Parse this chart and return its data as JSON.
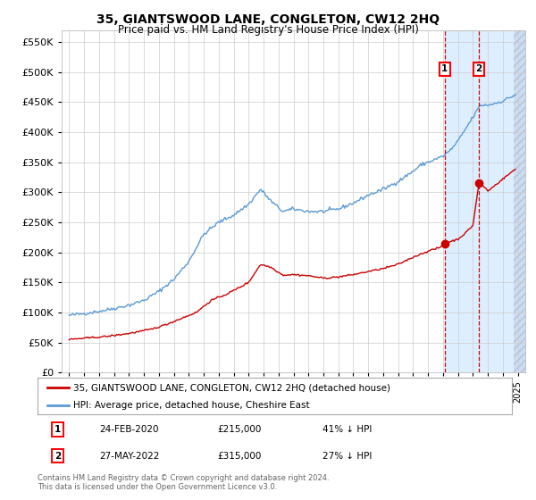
{
  "title": "35, GIANTSWOOD LANE, CONGLETON, CW12 2HQ",
  "subtitle": "Price paid vs. HM Land Registry's House Price Index (HPI)",
  "legend_line1": "35, GIANTSWOOD LANE, CONGLETON, CW12 2HQ (detached house)",
  "legend_line2": "HPI: Average price, detached house, Cheshire East",
  "footnote1": "Contains HM Land Registry data © Crown copyright and database right 2024.",
  "footnote2": "This data is licensed under the Open Government Licence v3.0.",
  "transaction1_date": "24-FEB-2020",
  "transaction1_price": "£215,000",
  "transaction1_hpi": "41% ↓ HPI",
  "transaction2_date": "27-MAY-2022",
  "transaction2_price": "£315,000",
  "transaction2_hpi": "27% ↓ HPI",
  "transaction1_x": 2020.12,
  "transaction1_y": 215000,
  "transaction2_x": 2022.4,
  "transaction2_y": 315000,
  "ylim": [
    0,
    570000
  ],
  "yticks": [
    0,
    50000,
    100000,
    150000,
    200000,
    250000,
    300000,
    350000,
    400000,
    450000,
    500000,
    550000
  ],
  "xlim_start": 1994.5,
  "xlim_end": 2025.5,
  "hatch_start": 2020.12,
  "hatch_end": 2025.5,
  "red_line_color": "#cc0000",
  "blue_line_color": "#5b9bd5",
  "hatch_color": "#ddeeff",
  "grid_color": "#cccccc",
  "bg_color": "#ffffff",
  "title_fontsize": 10,
  "subtitle_fontsize": 8.5,
  "axis_fontsize": 8
}
